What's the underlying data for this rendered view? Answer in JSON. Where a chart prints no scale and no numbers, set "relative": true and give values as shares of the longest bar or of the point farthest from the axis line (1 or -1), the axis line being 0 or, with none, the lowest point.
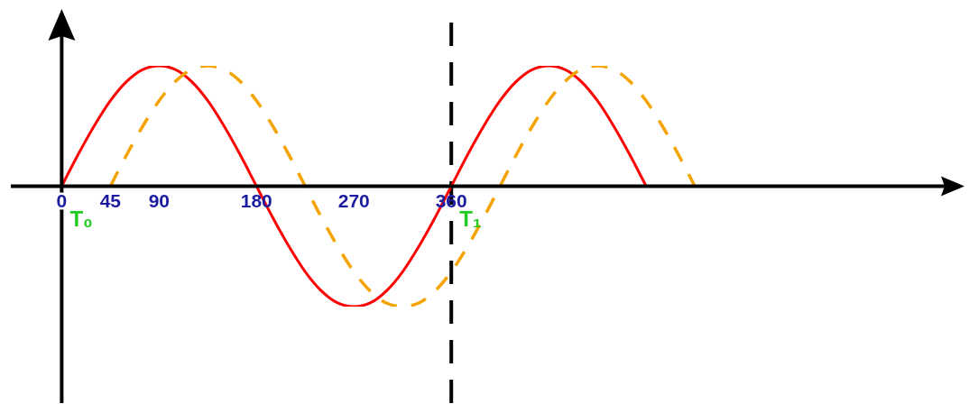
{
  "chart_data": {
    "type": "line",
    "relative": true,
    "marker": "none",
    "xlim": [
      -47,
      830
    ],
    "xticks": [
      0,
      45,
      90,
      180,
      270,
      360
    ],
    "series": [
      {
        "color": "#ff0000",
        "line_style": "solid",
        "x": [
          0,
          15,
          30,
          45,
          60,
          75,
          90,
          105,
          120,
          135,
          150,
          165,
          180,
          195,
          210,
          225,
          240,
          255,
          270,
          285,
          300,
          315,
          330,
          345,
          360,
          375,
          390,
          405,
          420,
          435,
          450,
          465,
          480,
          495,
          510,
          525,
          540
        ],
        "values": [
          0,
          0.26,
          0.5,
          0.71,
          0.87,
          0.97,
          1,
          0.97,
          0.87,
          0.71,
          0.5,
          0.26,
          0,
          -0.26,
          -0.5,
          -0.71,
          -0.87,
          -0.97,
          -1,
          -0.97,
          -0.87,
          -0.71,
          -0.5,
          -0.26,
          0,
          0.26,
          0.5,
          0.71,
          0.87,
          0.97,
          1,
          0.97,
          0.87,
          0.71,
          0.5,
          0.26,
          0
        ]
      },
      {
        "color": "#f4a300",
        "line_style": "dashed",
        "x": [
          45,
          60,
          75,
          90,
          105,
          120,
          135,
          150,
          165,
          180,
          195,
          210,
          225,
          240,
          255,
          270,
          285,
          300,
          315,
          330,
          345,
          360,
          375,
          390,
          405,
          420,
          435,
          450,
          465,
          480,
          495,
          510,
          525,
          540,
          555,
          570,
          585
        ],
        "values": [
          0,
          0.26,
          0.5,
          0.71,
          0.87,
          0.97,
          1,
          0.97,
          0.87,
          0.71,
          0.5,
          0.26,
          0,
          -0.26,
          -0.5,
          -0.71,
          -0.87,
          -0.97,
          -1,
          -0.97,
          -0.87,
          -0.71,
          -0.5,
          -0.26,
          0,
          0.26,
          0.5,
          0.71,
          0.87,
          0.97,
          1,
          0.97,
          0.87,
          0.71,
          0.5,
          0.26,
          0
        ]
      }
    ],
    "ref_lines": [
      {
        "axis": "x",
        "value": 360,
        "color": "#000000",
        "line_style": "dashed"
      }
    ],
    "annotations": [
      {
        "text": "T₀",
        "x": 0,
        "y": 0
      },
      {
        "text": "T₁",
        "x": 360,
        "y": 0
      }
    ]
  }
}
